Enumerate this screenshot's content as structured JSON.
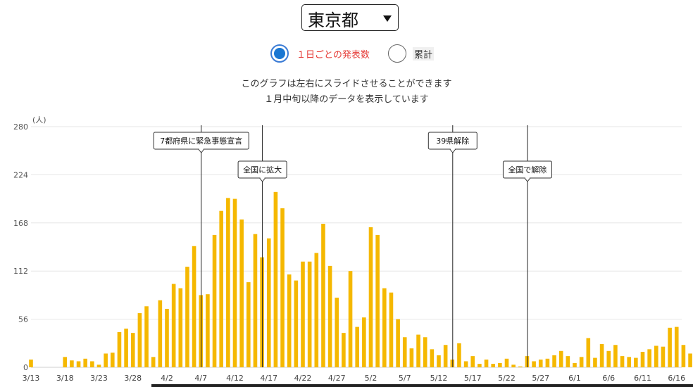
{
  "selector": {
    "value": "東京都"
  },
  "radios": [
    {
      "label": "１日ごとの発表数",
      "selected": true
    },
    {
      "label": "累計",
      "selected": false
    }
  ],
  "notes": [
    "このグラフは左右にスライドさせることができます",
    "１月中旬以降のデータを表示しています"
  ],
  "colors": {
    "bar": "#f5b800",
    "grid": "#e6e6e6",
    "accent_radio": "#1976d2",
    "selected_text": "#e53935"
  },
  "chart_data": {
    "type": "bar",
    "unit_label": "(人)",
    "yticks": [
      0,
      56,
      112,
      168,
      224,
      280
    ],
    "ylim": [
      0,
      280
    ],
    "grid": true,
    "x_start": "3/13",
    "x_tick_labels": [
      "3/13",
      "3/18",
      "3/23",
      "3/28",
      "4/2",
      "4/7",
      "4/12",
      "4/17",
      "4/22",
      "4/27",
      "5/2",
      "5/7",
      "5/12",
      "5/17",
      "5/22",
      "5/27",
      "6/1",
      "6/6",
      "6/11",
      "6/16"
    ],
    "values": [
      9,
      0,
      0,
      0,
      0,
      12,
      8,
      7,
      10,
      7,
      3,
      16,
      17,
      41,
      45,
      40,
      63,
      71,
      12,
      78,
      68,
      97,
      92,
      117,
      141,
      84,
      85,
      154,
      182,
      197,
      196,
      172,
      99,
      155,
      128,
      150,
      204,
      185,
      108,
      101,
      123,
      123,
      133,
      167,
      118,
      81,
      40,
      112,
      47,
      58,
      163,
      154,
      92,
      87,
      56,
      35,
      22,
      38,
      35,
      21,
      14,
      26,
      9,
      28,
      7,
      13,
      4,
      9,
      4,
      5,
      10,
      3,
      1,
      13,
      7,
      9,
      10,
      14,
      19,
      13,
      5,
      12,
      34,
      11,
      27,
      19,
      26,
      13,
      12,
      11,
      18,
      21,
      25,
      24,
      46,
      47,
      26,
      16
    ],
    "annotations": [
      {
        "label": "7都府県に緊急事態宣言",
        "date": "4/7"
      },
      {
        "label": "全国に拡大",
        "date": "4/16"
      },
      {
        "label": "39県解除",
        "date": "5/14"
      },
      {
        "label": "全国で解除",
        "date": "5/25"
      }
    ]
  }
}
